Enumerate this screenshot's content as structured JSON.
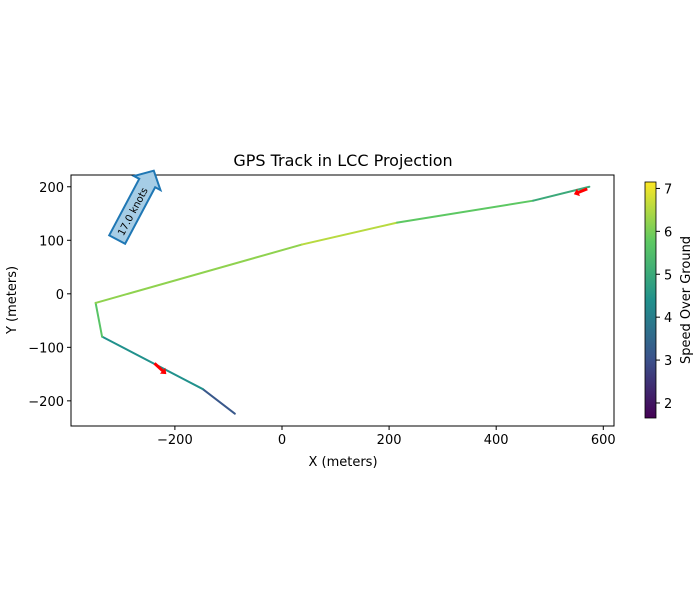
{
  "chart_data": {
    "type": "line",
    "title": "GPS Track in LCC Projection",
    "xlabel": "X (meters)",
    "ylabel": "Y (meters)",
    "xlim": [
      -394,
      620
    ],
    "ylim": [
      -247,
      222
    ],
    "xticks": [
      -200,
      0,
      200,
      400,
      600
    ],
    "yticks": [
      -200,
      -100,
      0,
      100,
      200
    ],
    "points": [
      {
        "x": -88,
        "y": -224,
        "speed": 3.0
      },
      {
        "x": -148,
        "y": -178,
        "speed": 3.3
      },
      {
        "x": -336,
        "y": -80,
        "speed": 5.5
      },
      {
        "x": -348,
        "y": -17,
        "speed": 5.8
      },
      {
        "x": 37,
        "y": 92,
        "speed": 6.6
      },
      {
        "x": 215,
        "y": 133,
        "speed": 6.5
      },
      {
        "x": 469,
        "y": 174,
        "speed": 5.0
      },
      {
        "x": 574,
        "y": 200,
        "speed": 5.0
      }
    ],
    "heading_arrows": [
      {
        "x": -238,
        "y": -130,
        "dx": 22,
        "dy": -20,
        "color": "#ff0000"
      },
      {
        "x": 570,
        "y": 196,
        "dx": -25,
        "dy": -10,
        "color": "#ff0000"
      }
    ],
    "annotation": {
      "text": "17.0 knots",
      "color": "#1f77b4",
      "fill": "#a6cde6"
    },
    "colorbar": {
      "label": "Speed Over Ground",
      "ticks": [
        2,
        3,
        4,
        5,
        6,
        7
      ],
      "range": [
        1.65,
        7.15
      ],
      "colormap": "viridis"
    }
  }
}
